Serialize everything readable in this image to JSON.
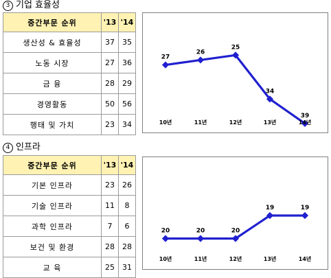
{
  "sections": [
    {
      "num": "3",
      "title": "기업 효율성",
      "table": {
        "header": "중간부문 순위",
        "col_labels": [
          "'13",
          "'14"
        ],
        "rows": [
          {
            "label": "생산성 & 효율성",
            "v13": "37",
            "v14": "35"
          },
          {
            "label": "노동 시장",
            "v13": "27",
            "v14": "36"
          },
          {
            "label": "금 융",
            "v13": "28",
            "v14": "29"
          },
          {
            "label": "경영활동",
            "v13": "50",
            "v14": "56"
          },
          {
            "label": "행태 및 가치",
            "v13": "23",
            "v14": "34"
          }
        ]
      }
    },
    {
      "num": "4",
      "title": "인프라",
      "table": {
        "header": "중간부문 순위",
        "col_labels": [
          "'13",
          "'14"
        ],
        "rows": [
          {
            "label": "기본 인프라",
            "v13": "23",
            "v14": "26"
          },
          {
            "label": "기술 인프라",
            "v13": "11",
            "v14": "8"
          },
          {
            "label": "과학 인프라",
            "v13": "7",
            "v14": "6"
          },
          {
            "label": "보건 및 환경",
            "v13": "28",
            "v14": "28"
          },
          {
            "label": "교 육",
            "v13": "25",
            "v14": "31"
          }
        ]
      }
    }
  ],
  "chart_data": [
    {
      "type": "line",
      "categories": [
        "10년",
        "11년",
        "12년",
        "13년",
        "14년"
      ],
      "series": [
        {
          "values": [
            27,
            26,
            25,
            34,
            39
          ]
        }
      ],
      "y_inverted": true,
      "ylim": [
        22,
        40
      ],
      "data_labels": true,
      "color": "#2020d0"
    },
    {
      "type": "line",
      "categories": [
        "10년",
        "11년",
        "12년",
        "13년",
        "14년"
      ],
      "series": [
        {
          "values": [
            20,
            20,
            20,
            19,
            19
          ]
        }
      ],
      "y_inverted": true,
      "ylim": [
        17,
        21
      ],
      "data_labels": true,
      "color": "#2020d0"
    }
  ]
}
